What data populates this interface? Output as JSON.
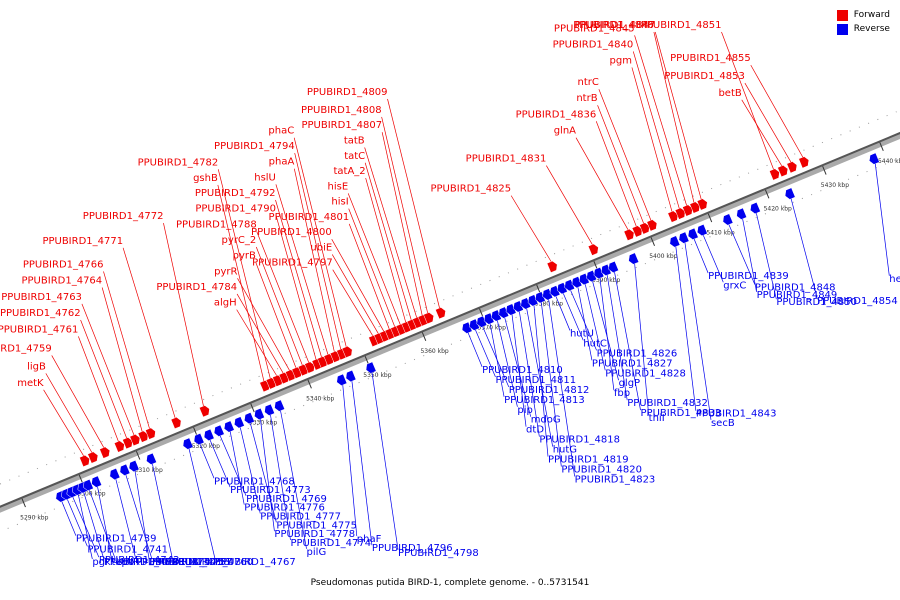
{
  "title": "Pseudomonas putida BIRD-1, complete genome. - 0..5731541",
  "legend": [
    {
      "label": "Forward",
      "color": "#ee0000"
    },
    {
      "label": "Reverse",
      "color": "#0000ee"
    }
  ],
  "colors": {
    "forward": "#ee0000",
    "reverse": "#0000ee",
    "axis": "#777777"
  },
  "ticks": [
    "5290 kbp",
    "5300 kbp",
    "5310 kbp",
    "5320 kbp",
    "5330 kbp",
    "5340 kbp",
    "5350 kbp",
    "5360 kbp",
    "5370 kbp",
    "5380 kbp",
    "5390 kbp",
    "5400 kbp",
    "5410 kbp",
    "5420 kbp",
    "5430 kbp",
    "5440 kbp"
  ],
  "forward_genes": [
    {
      "name": "metK",
      "pos": 0.109
    },
    {
      "name": "ligB",
      "pos": 0.118
    },
    {
      "name": "PPUBIRD1_4759",
      "pos": 0.131
    },
    {
      "name": "PPUBIRD1_4761",
      "pos": 0.147
    },
    {
      "name": "PPUBIRD1_4762",
      "pos": 0.156
    },
    {
      "name": "PPUBIRD1_4763",
      "pos": 0.164
    },
    {
      "name": "PPUBIRD1_4764",
      "pos": 0.173
    },
    {
      "name": "PPUBIRD1_4766",
      "pos": 0.181
    },
    {
      "name": "PPUBIRD1_4771",
      "pos": 0.209
    },
    {
      "name": "PPUBIRD1_4772",
      "pos": 0.24
    },
    {
      "name": "gshB",
      "pos": 0.306
    },
    {
      "name": "PPUBIRD1_4782",
      "pos": 0.313
    },
    {
      "name": "algH",
      "pos": 0.32
    },
    {
      "name": "PPUBIRD1_4784",
      "pos": 0.327
    },
    {
      "name": "pyrR",
      "pos": 0.334
    },
    {
      "name": "pyrB",
      "pos": 0.341
    },
    {
      "name": "pyrC_2",
      "pos": 0.348
    },
    {
      "name": "PPUBIRD1_4788",
      "pos": 0.355
    },
    {
      "name": "PPUBIRD1_4790",
      "pos": 0.363
    },
    {
      "name": "PPUBIRD1_4792",
      "pos": 0.369
    },
    {
      "name": "hslU",
      "pos": 0.376
    },
    {
      "name": "phaA",
      "pos": 0.383
    },
    {
      "name": "PPUBIRD1_4794",
      "pos": 0.39
    },
    {
      "name": "phaC",
      "pos": 0.396
    },
    {
      "name": "PPUBIRD1_4797",
      "pos": 0.425
    },
    {
      "name": "ubiE",
      "pos": 0.431
    },
    {
      "name": "PPUBIRD1_4800",
      "pos": 0.437
    },
    {
      "name": "PPUBIRD1_4801",
      "pos": 0.443
    },
    {
      "name": "hisI",
      "pos": 0.449
    },
    {
      "name": "hisE",
      "pos": 0.455
    },
    {
      "name": "tatA_2",
      "pos": 0.461
    },
    {
      "name": "tatC",
      "pos": 0.467
    },
    {
      "name": "tatB",
      "pos": 0.473
    },
    {
      "name": "PPUBIRD1_4807",
      "pos": 0.479
    },
    {
      "name": "PPUBIRD1_4808",
      "pos": 0.485
    },
    {
      "name": "PPUBIRD1_4809",
      "pos": 0.498
    },
    {
      "name": "PPUBIRD1_4825",
      "pos": 0.62
    },
    {
      "name": "PPUBIRD1_4831",
      "pos": 0.665
    },
    {
      "name": "glnA",
      "pos": 0.704
    },
    {
      "name": "PPUBIRD1_4836",
      "pos": 0.713
    },
    {
      "name": "ntrB",
      "pos": 0.721
    },
    {
      "name": "ntrC",
      "pos": 0.729
    },
    {
      "name": "pgm",
      "pos": 0.752
    },
    {
      "name": "PPUBIRD1_4840",
      "pos": 0.76
    },
    {
      "name": "PPUBIRD1_4845",
      "pos": 0.768
    },
    {
      "name": "PPUBIRD1_4846",
      "pos": 0.776
    },
    {
      "name": "PPUBIRD1_4847",
      "pos": 0.784
    },
    {
      "name": "PPUBIRD1_4851",
      "pos": 0.863
    },
    {
      "name": "betB",
      "pos": 0.872
    },
    {
      "name": "PPUBIRD1_4853",
      "pos": 0.882
    },
    {
      "name": "PPUBIRD1_4855",
      "pos": 0.895
    }
  ],
  "reverse_genes": [
    {
      "name": "PPUBIRD1_4739",
      "pos": 0.071
    },
    {
      "name": "PPUBIRD1_4741",
      "pos": 0.077
    },
    {
      "name": "PPUBIRD1_4742",
      "pos": 0.083
    },
    {
      "name": "pgk",
      "pos": 0.089
    },
    {
      "name": "PPUBIRD1_4743",
      "pos": 0.095
    },
    {
      "name": "epd",
      "pos": 0.101
    },
    {
      "name": "tktA",
      "pos": 0.11
    },
    {
      "name": "PPUBIRD1_4754",
      "pos": 0.13
    },
    {
      "name": "PPUBIRD1_4757",
      "pos": 0.141
    },
    {
      "name": "PPUBIRD1_4758",
      "pos": 0.151
    },
    {
      "name": "PPUBIRD1_4760",
      "pos": 0.17
    },
    {
      "name": "PPUBIRD1_4767",
      "pos": 0.21
    },
    {
      "name": "PPUBIRD1_4768",
      "pos": 0.222
    },
    {
      "name": "PPUBIRD1_4773",
      "pos": 0.233
    },
    {
      "name": "PPUBIRD1_4769",
      "pos": 0.244
    },
    {
      "name": "PPUBIRD1_4776",
      "pos": 0.255
    },
    {
      "name": "PPUBIRD1_4777",
      "pos": 0.266
    },
    {
      "name": "PPUBIRD1_4775",
      "pos": 0.277
    },
    {
      "name": "PPUBIRD1_4778",
      "pos": 0.288
    },
    {
      "name": "PPUBIRD1_4774",
      "pos": 0.299
    },
    {
      "name": "pilG",
      "pos": 0.31
    },
    {
      "name": "phaF",
      "pos": 0.378
    },
    {
      "name": "PPUBIRD1_4796",
      "pos": 0.388
    },
    {
      "name": "PPUBIRD1_4798",
      "pos": 0.41
    },
    {
      "name": "PPUBIRD1_4810",
      "pos": 0.515
    },
    {
      "name": "PPUBIRD1_4811",
      "pos": 0.523
    },
    {
      "name": "PPUBIRD1_4812",
      "pos": 0.531
    },
    {
      "name": "PPUBIRD1_4813",
      "pos": 0.539
    },
    {
      "name": "pip",
      "pos": 0.547
    },
    {
      "name": "mdoG",
      "pos": 0.555
    },
    {
      "name": "dtD",
      "pos": 0.563
    },
    {
      "name": "PPUBIRD1_4818",
      "pos": 0.571
    },
    {
      "name": "hutG",
      "pos": 0.579
    },
    {
      "name": "PPUBIRD1_4819",
      "pos": 0.587
    },
    {
      "name": "PPUBIRD1_4820",
      "pos": 0.595
    },
    {
      "name": "PPUBIRD1_4823",
      "pos": 0.603
    },
    {
      "name": "hutU",
      "pos": 0.611
    },
    {
      "name": "hutC",
      "pos": 0.619
    },
    {
      "name": "PPUBIRD1_4826",
      "pos": 0.627
    },
    {
      "name": "PPUBIRD1_4827",
      "pos": 0.635
    },
    {
      "name": "PPUBIRD1_4828",
      "pos": 0.643
    },
    {
      "name": "glgP",
      "pos": 0.651
    },
    {
      "name": "fbp",
      "pos": 0.659
    },
    {
      "name": "PPUBIRD1_4832",
      "pos": 0.667
    },
    {
      "name": "PPUBIRD1_4833",
      "pos": 0.675
    },
    {
      "name": "thiI",
      "pos": 0.697
    },
    {
      "name": "PPUBIRD1_4843",
      "pos": 0.742
    },
    {
      "name": "secB",
      "pos": 0.752
    },
    {
      "name": "PPUBIRD1_4839",
      "pos": 0.762
    },
    {
      "name": "grxC",
      "pos": 0.772
    },
    {
      "name": "PPUBIRD1_4848",
      "pos": 0.8
    },
    {
      "name": "PPUBIRD1_4849",
      "pos": 0.815
    },
    {
      "name": "PPUBIRD1_4850",
      "pos": 0.83
    },
    {
      "name": "PPUBIRD1_4854",
      "pos": 0.868
    },
    {
      "name": "hemE",
      "pos": 0.96
    }
  ]
}
